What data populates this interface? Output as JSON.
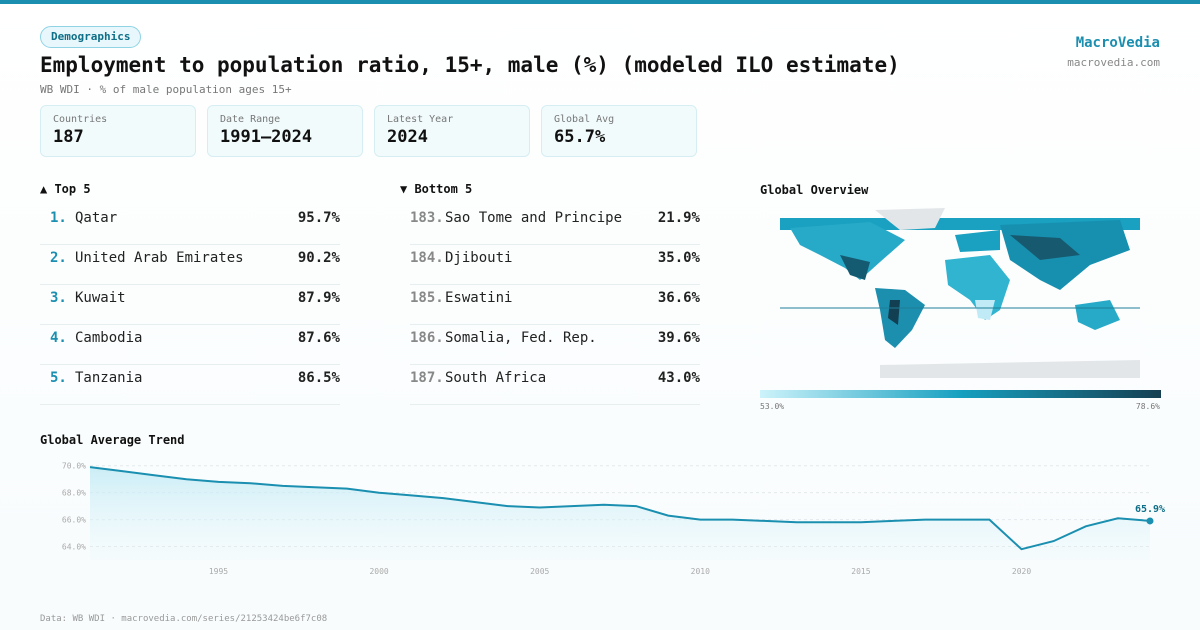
{
  "header": {
    "tag": "Demographics",
    "title": "Employment to population ratio, 15+, male (%) (modeled ILO estimate)",
    "subtitle": "WB WDI · % of male population ages 15+",
    "brand": "MacroVedia",
    "url": "macrovedia.com"
  },
  "stats": [
    {
      "label": "Countries",
      "value": "187"
    },
    {
      "label": "Date Range",
      "value": "1991–2024"
    },
    {
      "label": "Latest Year",
      "value": "2024"
    },
    {
      "label": "Global Avg",
      "value": "65.7%"
    }
  ],
  "top": {
    "title": "▲ Top 5",
    "rows": [
      [
        "1.",
        "Qatar",
        "95.7%"
      ],
      [
        "2.",
        "United Arab Emirates",
        "90.2%"
      ],
      [
        "3.",
        "Kuwait",
        "87.9%"
      ],
      [
        "4.",
        "Cambodia",
        "87.6%"
      ],
      [
        "5.",
        "Tanzania",
        "86.5%"
      ]
    ]
  },
  "bottom": {
    "title": "▼ Bottom 5",
    "rows": [
      [
        "183.",
        "Sao Tome and Principe",
        "21.9%"
      ],
      [
        "184.",
        "Djibouti",
        "35.0%"
      ],
      [
        "185.",
        "Eswatini",
        "36.6%"
      ],
      [
        "186.",
        "Somalia, Fed. Rep.",
        "39.6%"
      ],
      [
        "187.",
        "South Africa",
        "43.0%"
      ]
    ]
  },
  "map": {
    "title": "Global Overview",
    "legend_min": "53.0%",
    "legend_max": "78.6%"
  },
  "chart_data": {
    "type": "area",
    "title": "Global Average Trend",
    "x": [
      1991,
      1992,
      1993,
      1994,
      1995,
      1996,
      1997,
      1998,
      1999,
      2000,
      2001,
      2002,
      2003,
      2004,
      2005,
      2006,
      2007,
      2008,
      2009,
      2010,
      2011,
      2012,
      2013,
      2014,
      2015,
      2016,
      2017,
      2018,
      2019,
      2020,
      2021,
      2022,
      2023,
      2024
    ],
    "values": [
      69.9,
      69.6,
      69.3,
      69.0,
      68.8,
      68.7,
      68.5,
      68.4,
      68.3,
      68.0,
      67.8,
      67.6,
      67.3,
      67.0,
      66.9,
      67.0,
      67.1,
      67.0,
      66.3,
      66.0,
      66.0,
      65.9,
      65.8,
      65.8,
      65.8,
      65.9,
      66.0,
      66.0,
      66.0,
      63.8,
      64.4,
      65.5,
      66.1,
      65.9
    ],
    "value_labels": [
      null,
      null,
      null,
      null,
      null,
      null,
      null,
      null,
      null,
      null,
      null,
      null,
      null,
      null,
      null,
      null,
      null,
      null,
      null,
      null,
      null,
      null,
      null,
      null,
      null,
      null,
      null,
      null,
      null,
      null,
      null,
      null,
      null,
      "65.9%"
    ],
    "color": "#1a8fb0",
    "xlim": [
      1991,
      2024
    ],
    "xticks": [
      1995,
      2000,
      2005,
      2010,
      2015,
      2020
    ],
    "ylim": [
      63.0,
      70.5
    ],
    "yticks": [
      {
        "value": 64,
        "label": "64.0%"
      },
      {
        "value": 66,
        "label": "66.0%"
      },
      {
        "value": 68,
        "label": "68.0%"
      },
      {
        "value": 70,
        "label": "70.0%"
      }
    ],
    "grid": true
  },
  "footer": "Data: WB WDI · macrovedia.com/series/21253424be6f7c08"
}
